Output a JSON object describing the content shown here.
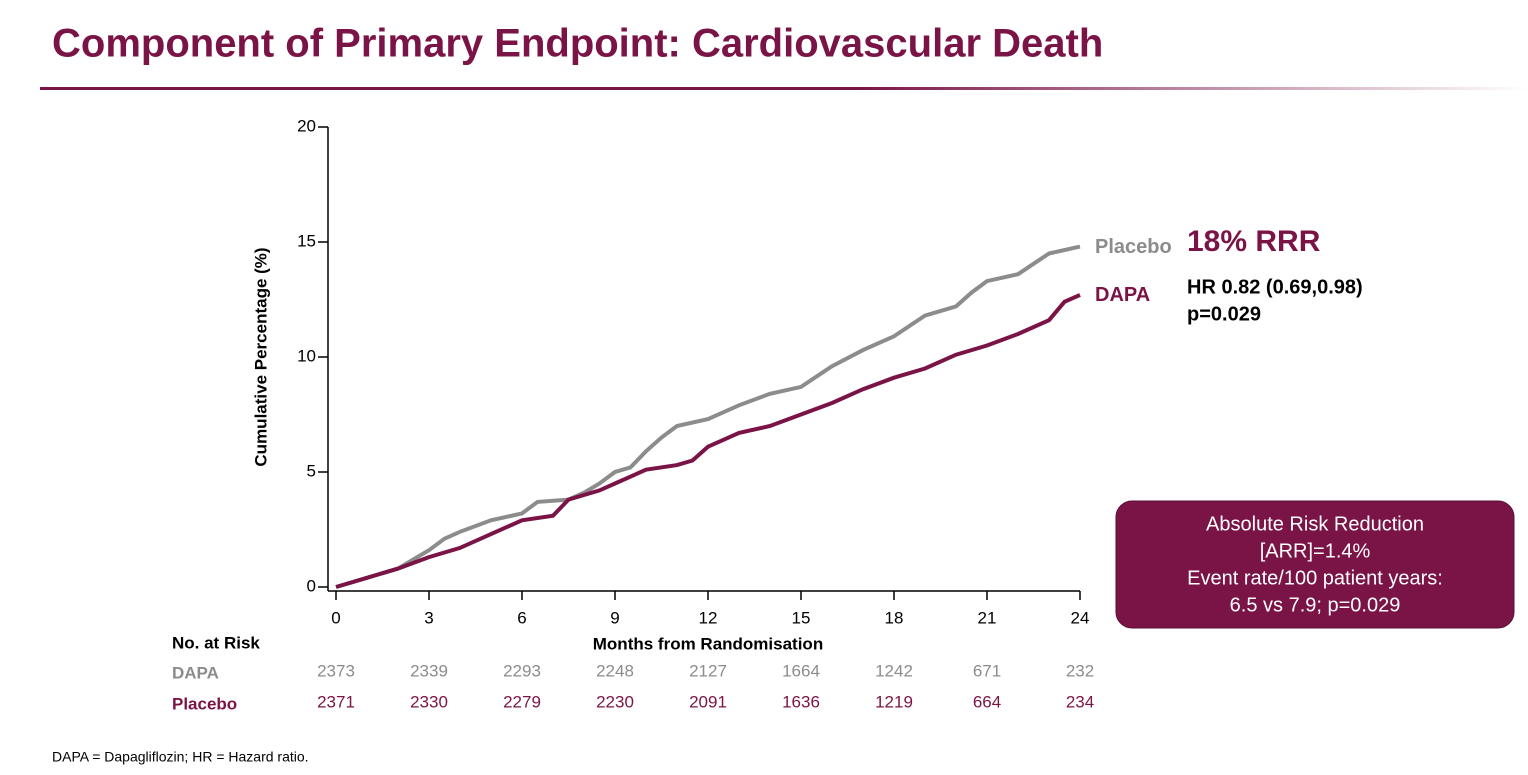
{
  "chart_data": {
    "type": "line",
    "title": "Component of Primary Endpoint: Cardiovascular Death",
    "x_label": "Months from Randomisation",
    "y_label": "Cumulative Percentage (%)",
    "xlim": [
      0,
      24
    ],
    "xticks": [
      0,
      3,
      6,
      9,
      12,
      15,
      18,
      21,
      24
    ],
    "ylim": [
      0,
      20
    ],
    "yticks": [
      0,
      5,
      10,
      15,
      20
    ],
    "series": [
      {
        "name": "Placebo",
        "color": "#8c8c8c",
        "x": [
          0,
          1,
          2,
          2.5,
          3,
          3.5,
          4,
          5,
          6,
          6.5,
          7.5,
          8,
          8.5,
          9,
          9.5,
          10,
          10.5,
          11,
          12,
          13,
          14,
          15,
          16,
          17,
          18,
          19,
          20,
          20.5,
          21,
          22,
          23,
          24
        ],
        "values": [
          0,
          0.4,
          0.8,
          1.2,
          1.6,
          2.1,
          2.4,
          2.9,
          3.2,
          3.7,
          3.8,
          4.1,
          4.5,
          5.0,
          5.2,
          5.9,
          6.5,
          7.0,
          7.3,
          7.9,
          8.4,
          8.7,
          9.6,
          10.3,
          10.9,
          11.8,
          12.2,
          12.8,
          13.3,
          13.6,
          14.5,
          14.8
        ]
      },
      {
        "name": "DAPA",
        "color": "#7b1446",
        "x": [
          0,
          1,
          2,
          3,
          4,
          5,
          6,
          7,
          7.5,
          8.5,
          9,
          10,
          11,
          11.5,
          12,
          13,
          14,
          15,
          16,
          17,
          18,
          19,
          20,
          21,
          22,
          23,
          23.5,
          24
        ],
        "values": [
          0,
          0.4,
          0.8,
          1.3,
          1.7,
          2.3,
          2.9,
          3.1,
          3.8,
          4.2,
          4.5,
          5.1,
          5.3,
          5.5,
          6.1,
          6.7,
          7.0,
          7.5,
          8.0,
          8.6,
          9.1,
          9.5,
          10.1,
          10.5,
          11.0,
          11.6,
          12.4,
          12.7
        ]
      }
    ],
    "annotations": [
      "18% RRR",
      "HR 0.82 (0.69,0.98)",
      "p=0.029"
    ],
    "box_text": [
      "Absolute Risk Reduction",
      "[ARR]=1.4%",
      "Event rate/100 patient years:",
      "6.5 vs 7.9; p=0.029"
    ],
    "risk_table": {
      "title": "No. at Risk",
      "rows": [
        {
          "name": "DAPA",
          "values": [
            2373,
            2339,
            2293,
            2248,
            2127,
            1664,
            1242,
            671,
            232
          ]
        },
        {
          "name": "Placebo",
          "values": [
            2371,
            2330,
            2279,
            2230,
            2091,
            1636,
            1219,
            664,
            234
          ]
        }
      ]
    },
    "footnote": "DAPA = Dapagliflozin; HR = Hazard ratio."
  }
}
